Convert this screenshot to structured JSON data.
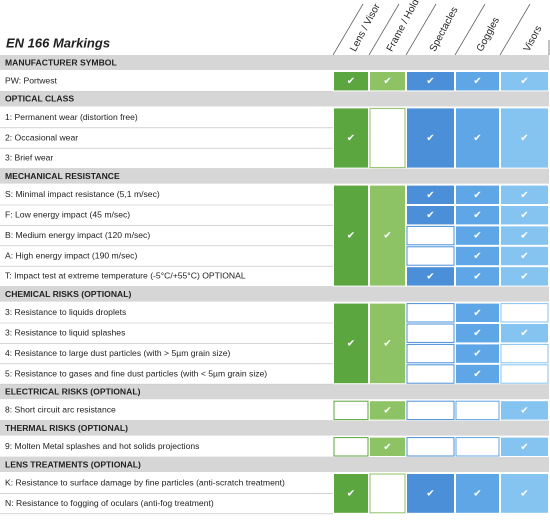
{
  "header": {
    "title": "EN 166 Markings",
    "columns": [
      "Lens / Visor",
      "Frame / Holder",
      "Spectacles",
      "Goggles",
      "Visors"
    ]
  },
  "sections": [
    {
      "title": "MANUFACTURER SYMBOL",
      "rows": [
        "PW: Portwest"
      ],
      "marks": [
        [
          "✔"
        ],
        [
          "✔"
        ],
        [
          "✔"
        ],
        [
          "✔"
        ],
        [
          "✔"
        ]
      ]
    },
    {
      "title": "OPTICAL CLASS",
      "rows": [
        "1: Permanent wear (distortion free)",
        "2: Occasional wear",
        "3: Brief wear"
      ],
      "marks": [
        [
          "✔"
        ],
        [
          null
        ],
        [
          "✔"
        ],
        [
          "✔"
        ],
        [
          "✔"
        ]
      ]
    },
    {
      "title": "MECHANICAL RESISTANCE",
      "rows": [
        "S: Minimal impact resistance (5,1 m/sec)",
        "F: Low energy impact (45 m/sec)",
        "B: Medium energy impact (120 m/sec)",
        "A: High energy impact (190 m/sec)",
        "T: Impact test at extreme temperature (-5°C/+55°C) OPTIONAL"
      ],
      "marks": [
        [
          "✔"
        ],
        [
          "✔"
        ],
        [
          "✔",
          "✔",
          null,
          null,
          "✔"
        ],
        [
          "✔",
          "✔",
          "✔",
          "✔",
          "✔"
        ],
        [
          "✔",
          "✔",
          "✔",
          "✔",
          "✔"
        ]
      ]
    },
    {
      "title": "CHEMICAL RISKS (OPTIONAL)",
      "rows": [
        "3: Resistance to liquids droplets",
        "3: Resistance to liquid splashes",
        "4: Resistance to large dust particles (with  > 5µm grain size)",
        "5: Resistance to gases and fine dust particles (with < 5µm grain size)"
      ],
      "marks": [
        [
          "✔"
        ],
        [
          "✔"
        ],
        [
          null,
          null,
          null,
          null
        ],
        [
          "✔",
          "✔",
          "✔",
          "✔"
        ],
        [
          null,
          "✔",
          null,
          null
        ]
      ]
    },
    {
      "title": "ELECTRICAL RISKS (OPTIONAL)",
      "rows": [
        "8: Short circuit arc resistance"
      ],
      "marks": [
        [
          null
        ],
        [
          "✔"
        ],
        [
          null
        ],
        [
          null
        ],
        [
          "✔"
        ]
      ]
    },
    {
      "title": "THERMAL RISKS (OPTIONAL)",
      "rows": [
        "9: Molten Metal splashes and hot solids projections"
      ],
      "marks": [
        [
          null
        ],
        [
          "✔"
        ],
        [
          null
        ],
        [
          null
        ],
        [
          "✔"
        ]
      ]
    },
    {
      "title": "LENS TREATMENTS (OPTIONAL)",
      "rows": [
        "K: Resistance to surface damage by fine particles (anti-scratch treatment)",
        "N: Resistance to fogging of oculars (anti-fog treatment)"
      ],
      "marks": [
        [
          "✔"
        ],
        [
          null
        ],
        [
          "✔"
        ],
        [
          "✔"
        ],
        [
          "✔"
        ]
      ]
    }
  ]
}
